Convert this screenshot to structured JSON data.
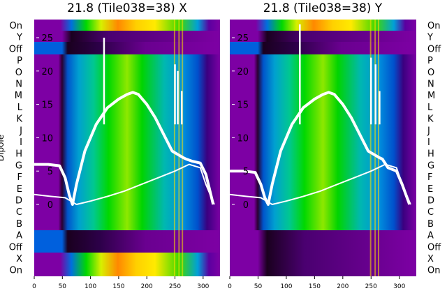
{
  "chart_data": [
    {
      "type": "heatmap",
      "title": "21.8 (Tile038=38) X",
      "ylabel": "Dipole",
      "dipole_labels": [
        "On",
        "Y",
        "Off",
        "P",
        "O",
        "N",
        "M",
        "L",
        "K",
        "J",
        "I",
        "H",
        "G",
        "F",
        "E",
        "D",
        "C",
        "B",
        "A",
        "Off",
        "X",
        "On"
      ],
      "xlim": [
        0,
        330
      ],
      "xticks": [
        0,
        50,
        100,
        150,
        200,
        250,
        300
      ],
      "overlay_ylim": [
        -2,
        27
      ],
      "overlay_yticks": [
        0,
        5,
        10,
        15,
        20,
        25
      ],
      "overlay_series": [
        {
          "x": [
            0,
            25,
            45,
            55,
            62,
            68,
            75,
            90,
            110,
            130,
            150,
            165,
            175,
            185,
            200,
            215,
            230,
            245,
            255,
            265,
            270,
            280,
            295,
            305,
            318
          ],
          "y": [
            6,
            6,
            5.8,
            4,
            1.5,
            0,
            3,
            8,
            12,
            14.5,
            15.8,
            16.5,
            16.8,
            16.5,
            15,
            13,
            10.5,
            8,
            7.5,
            7,
            6.8,
            6.5,
            6.2,
            4.5,
            0
          ]
        },
        {
          "x": [
            0,
            30,
            55,
            65,
            75,
            100,
            130,
            160,
            190,
            220,
            250,
            275,
            295,
            305,
            320
          ],
          "y": [
            1.5,
            1.2,
            1.0,
            0.5,
            0,
            0.5,
            1.2,
            2,
            3,
            4,
            5,
            6,
            5.5,
            3,
            0
          ]
        }
      ],
      "spikes": [
        {
          "x": 124,
          "y": 25
        },
        {
          "x": 250,
          "y": 21
        },
        {
          "x": 255,
          "y": 20
        },
        {
          "x": 262,
          "y": 17
        }
      ]
    },
    {
      "type": "heatmap",
      "title": "21.8 (Tile038=38) Y",
      "dipole_labels": [
        "On",
        "Y",
        "Off",
        "P",
        "O",
        "N",
        "M",
        "L",
        "K",
        "J",
        "I",
        "H",
        "G",
        "F",
        "E",
        "D",
        "C",
        "B",
        "A",
        "Off",
        "X",
        "On"
      ],
      "xlim": [
        0,
        330
      ],
      "xticks": [
        0,
        50,
        100,
        150,
        200,
        250,
        300
      ],
      "overlay_ylim": [
        -2,
        27
      ],
      "overlay_yticks": [
        0,
        5,
        10,
        15,
        20,
        25
      ],
      "overlay_series": [
        {
          "x": [
            0,
            25,
            45,
            55,
            62,
            68,
            75,
            90,
            110,
            130,
            150,
            165,
            175,
            185,
            200,
            215,
            230,
            245,
            255,
            265,
            270,
            280,
            295,
            305,
            318
          ],
          "y": [
            5,
            5,
            4.8,
            3,
            1.0,
            0,
            3,
            8,
            12,
            14.5,
            15.8,
            16.5,
            16.8,
            16.5,
            15,
            13,
            10.5,
            8,
            7.5,
            7,
            6.8,
            5.5,
            5,
            3,
            0
          ]
        },
        {
          "x": [
            0,
            30,
            55,
            65,
            75,
            100,
            130,
            160,
            190,
            220,
            250,
            275,
            295,
            305,
            320
          ],
          "y": [
            1.5,
            1.2,
            1.0,
            0.5,
            0,
            0.5,
            1.2,
            2,
            3,
            4,
            5,
            6,
            5.5,
            3,
            0
          ]
        }
      ],
      "spikes": [
        {
          "x": 124,
          "y": 27
        },
        {
          "x": 250,
          "y": 22
        },
        {
          "x": 258,
          "y": 21
        },
        {
          "x": 265,
          "y": 17
        }
      ]
    }
  ],
  "colors": {
    "purple": "#7d00a4",
    "blue": "#0066dd",
    "cyan": "#00a8d8",
    "green": "#00d400",
    "lime": "#b6f000",
    "yellow": "#ffe000",
    "orange": "#ff7a00",
    "dark": "#1a001f",
    "overlay": "#ffffff"
  }
}
